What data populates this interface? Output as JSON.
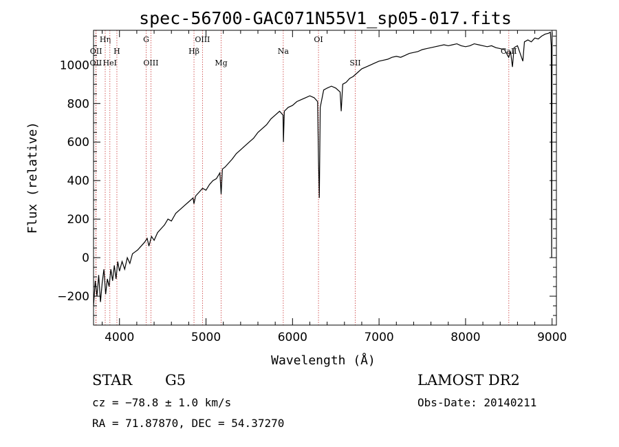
{
  "chart_data": {
    "type": "line",
    "title": "spec-56700-GAC071N55V1_sp05-017.fits",
    "xlabel": "Wavelength (Å)",
    "ylabel": "Flux (relative)",
    "xlim": [
      3700,
      9050
    ],
    "ylim": [
      -350,
      1180
    ],
    "x_ticks": [
      4000,
      5000,
      6000,
      7000,
      8000,
      9000
    ],
    "y_ticks": [
      -200,
      0,
      200,
      400,
      600,
      800,
      1000
    ],
    "grid": false,
    "series": [
      {
        "points": [
          [
            3700,
            -250
          ],
          [
            3720,
            -120
          ],
          [
            3740,
            -200
          ],
          [
            3760,
            -90
          ],
          [
            3780,
            -230
          ],
          [
            3800,
            -130
          ],
          [
            3820,
            -60
          ],
          [
            3840,
            -190
          ],
          [
            3860,
            -110
          ],
          [
            3880,
            -150
          ],
          [
            3900,
            -60
          ],
          [
            3920,
            -120
          ],
          [
            3940,
            -40
          ],
          [
            3960,
            -110
          ],
          [
            3980,
            -20
          ],
          [
            4000,
            -70
          ],
          [
            4030,
            -20
          ],
          [
            4060,
            -60
          ],
          [
            4090,
            0
          ],
          [
            4120,
            -30
          ],
          [
            4150,
            20
          ],
          [
            4180,
            30
          ],
          [
            4210,
            40
          ],
          [
            4250,
            60
          ],
          [
            4290,
            80
          ],
          [
            4320,
            100
          ],
          [
            4340,
            60
          ],
          [
            4370,
            110
          ],
          [
            4400,
            90
          ],
          [
            4440,
            130
          ],
          [
            4480,
            150
          ],
          [
            4520,
            170
          ],
          [
            4560,
            200
          ],
          [
            4600,
            190
          ],
          [
            4650,
            230
          ],
          [
            4700,
            250
          ],
          [
            4750,
            270
          ],
          [
            4800,
            290
          ],
          [
            4850,
            310
          ],
          [
            4861,
            280
          ],
          [
            4880,
            320
          ],
          [
            4920,
            340
          ],
          [
            4960,
            360
          ],
          [
            5000,
            350
          ],
          [
            5040,
            380
          ],
          [
            5080,
            400
          ],
          [
            5120,
            410
          ],
          [
            5160,
            440
          ],
          [
            5175,
            330
          ],
          [
            5190,
            460
          ],
          [
            5220,
            470
          ],
          [
            5260,
            490
          ],
          [
            5300,
            510
          ],
          [
            5350,
            540
          ],
          [
            5400,
            560
          ],
          [
            5450,
            580
          ],
          [
            5500,
            600
          ],
          [
            5550,
            620
          ],
          [
            5600,
            650
          ],
          [
            5650,
            670
          ],
          [
            5700,
            690
          ],
          [
            5750,
            720
          ],
          [
            5800,
            740
          ],
          [
            5850,
            760
          ],
          [
            5890,
            740
          ],
          [
            5895,
            600
          ],
          [
            5905,
            760
          ],
          [
            5950,
            780
          ],
          [
            6000,
            790
          ],
          [
            6050,
            810
          ],
          [
            6100,
            820
          ],
          [
            6150,
            830
          ],
          [
            6200,
            840
          ],
          [
            6250,
            830
          ],
          [
            6290,
            810
          ],
          [
            6300,
            500
          ],
          [
            6310,
            310
          ],
          [
            6320,
            780
          ],
          [
            6360,
            870
          ],
          [
            6400,
            880
          ],
          [
            6450,
            890
          ],
          [
            6500,
            880
          ],
          [
            6550,
            860
          ],
          [
            6563,
            760
          ],
          [
            6580,
            900
          ],
          [
            6620,
            910
          ],
          [
            6660,
            930
          ],
          [
            6700,
            940
          ],
          [
            6750,
            960
          ],
          [
            6800,
            980
          ],
          [
            6850,
            990
          ],
          [
            6900,
            1000
          ],
          [
            6950,
            1010
          ],
          [
            7000,
            1020
          ],
          [
            7050,
            1025
          ],
          [
            7100,
            1030
          ],
          [
            7150,
            1040
          ],
          [
            7200,
            1045
          ],
          [
            7250,
            1040
          ],
          [
            7300,
            1050
          ],
          [
            7350,
            1060
          ],
          [
            7400,
            1065
          ],
          [
            7450,
            1070
          ],
          [
            7500,
            1080
          ],
          [
            7550,
            1085
          ],
          [
            7600,
            1090
          ],
          [
            7650,
            1095
          ],
          [
            7700,
            1100
          ],
          [
            7750,
            1105
          ],
          [
            7800,
            1100
          ],
          [
            7850,
            1105
          ],
          [
            7900,
            1110
          ],
          [
            7950,
            1100
          ],
          [
            8000,
            1095
          ],
          [
            8050,
            1100
          ],
          [
            8100,
            1110
          ],
          [
            8150,
            1105
          ],
          [
            8200,
            1100
          ],
          [
            8250,
            1095
          ],
          [
            8300,
            1100
          ],
          [
            8350,
            1090
          ],
          [
            8400,
            1085
          ],
          [
            8450,
            1080
          ],
          [
            8498,
            1040
          ],
          [
            8520,
            1070
          ],
          [
            8542,
            990
          ],
          [
            8560,
            1090
          ],
          [
            8600,
            1100
          ],
          [
            8662,
            1020
          ],
          [
            8680,
            1120
          ],
          [
            8720,
            1130
          ],
          [
            8760,
            1120
          ],
          [
            8800,
            1140
          ],
          [
            8840,
            1135
          ],
          [
            8880,
            1150
          ],
          [
            8920,
            1160
          ],
          [
            8960,
            1165
          ],
          [
            8980,
            1170
          ],
          [
            8990,
            1100
          ],
          [
            8995,
            0
          ],
          [
            9000,
            1170
          ]
        ]
      }
    ],
    "line_markers": [
      {
        "label": "OII",
        "wavelength": 3727,
        "row": 3
      },
      {
        "label": "OII",
        "wavelength": 3729,
        "row": 2
      },
      {
        "label": "Hη",
        "wavelength": 3835,
        "row": 1
      },
      {
        "label": "HeI",
        "wavelength": 3889,
        "row": 3
      },
      {
        "label": "H",
        "wavelength": 3970,
        "row": 2
      },
      {
        "label": "G",
        "wavelength": 4308,
        "row": 1
      },
      {
        "label": "OIII",
        "wavelength": 4363,
        "row": 3
      },
      {
        "label": "Hβ",
        "wavelength": 4861,
        "row": 2
      },
      {
        "label": "OIII",
        "wavelength": 4959,
        "row": 1
      },
      {
        "label": "Mg",
        "wavelength": 5175,
        "row": 3
      },
      {
        "label": "Na",
        "wavelength": 5893,
        "row": 2
      },
      {
        "label": "OI",
        "wavelength": 6300,
        "row": 1
      },
      {
        "label": "SII",
        "wavelength": 6725,
        "row": 3
      },
      {
        "label": "CaII",
        "wavelength": 8500,
        "row": 2
      }
    ],
    "marker_color": "#c83232"
  },
  "info": {
    "class": "STAR",
    "subclass": "G5",
    "survey": "LAMOST DR2",
    "cz": "cz = −78.8 ± 1.0 km/s",
    "obs_date": "Obs-Date: 20140211",
    "coords": "RA =  71.87870, DEC =  54.37270"
  }
}
